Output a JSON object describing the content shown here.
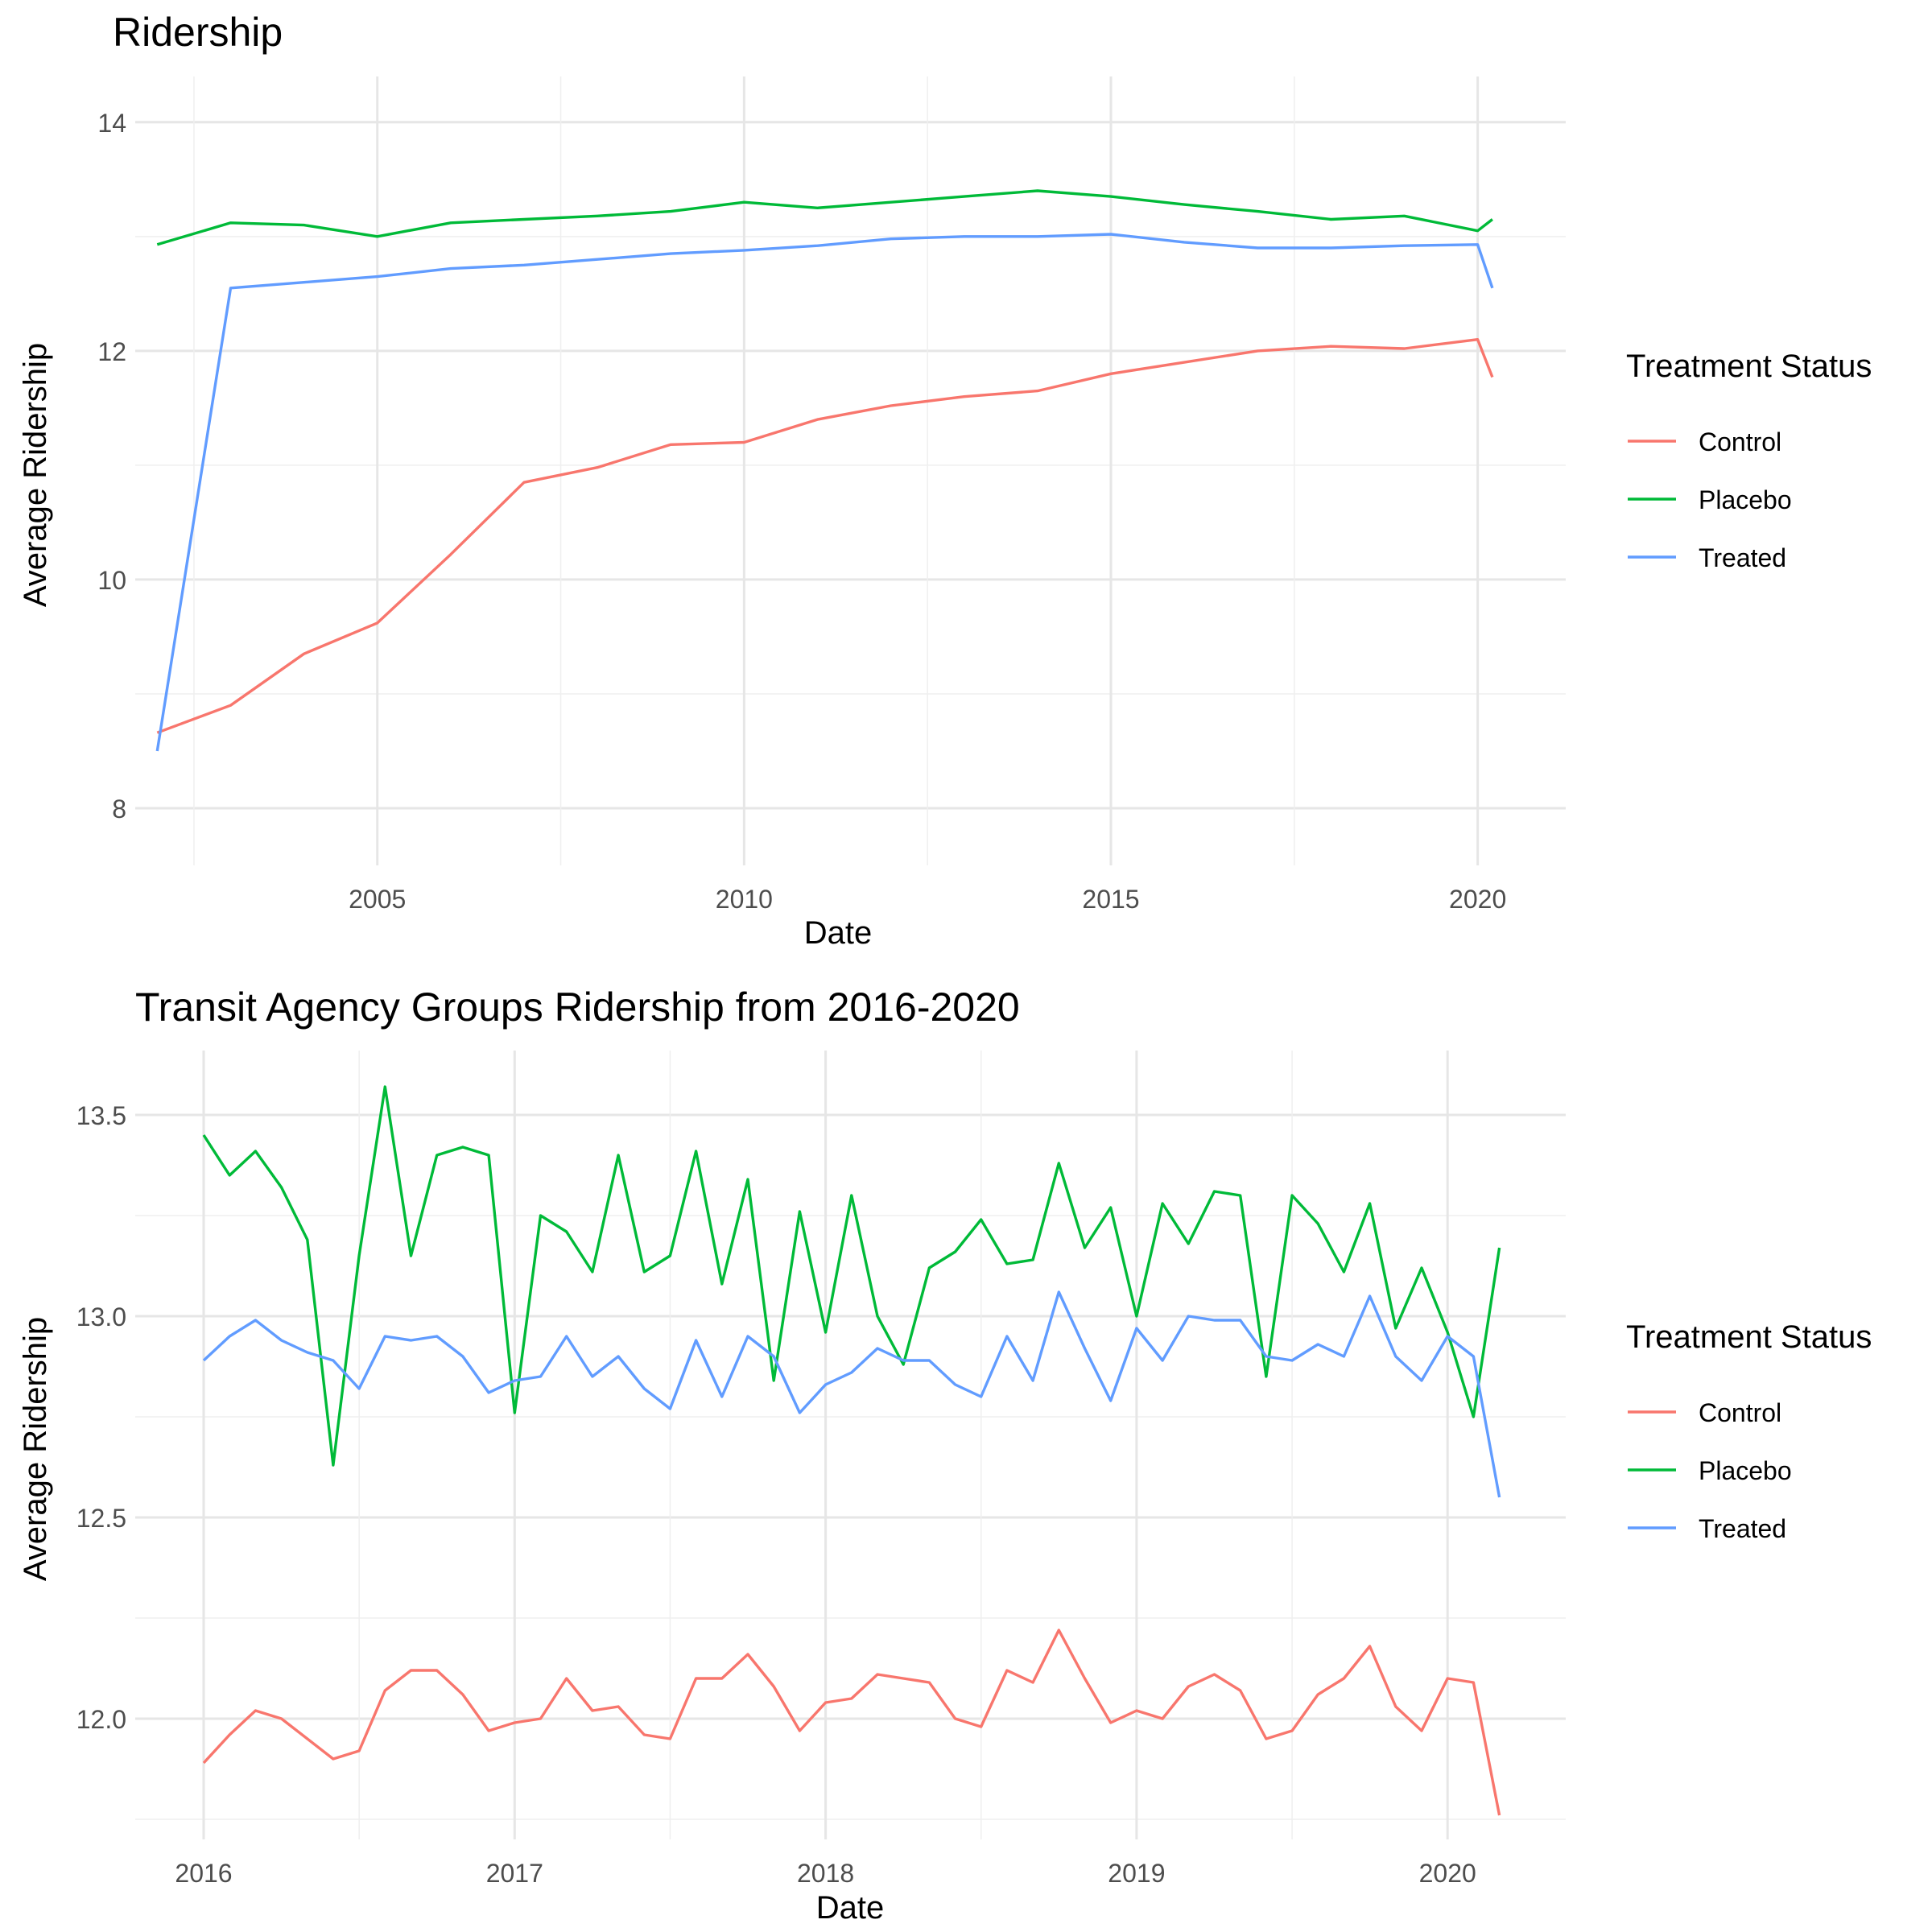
{
  "chart_data": [
    {
      "type": "line",
      "title": "Ridership",
      "xlabel": "Date",
      "ylabel": "Average Ridership",
      "x_ticks": [
        "2005",
        "2010",
        "2015",
        "2020"
      ],
      "y_ticks": [
        "8",
        "10",
        "12",
        "14"
      ],
      "xlim": [
        2001.7,
        2021.2
      ],
      "ylim": [
        7.5,
        14.4
      ],
      "grid": true,
      "legend": {
        "title": "Treatment Status",
        "position": "right",
        "entries": [
          "Control",
          "Placebo",
          "Treated"
        ]
      },
      "x": [
        2002.0,
        2003.0,
        2004.0,
        2005.0,
        2006.0,
        2007.0,
        2008.0,
        2009.0,
        2010.0,
        2011.0,
        2012.0,
        2013.0,
        2014.0,
        2015.0,
        2016.0,
        2017.0,
        2018.0,
        2019.0,
        2020.0,
        2020.2
      ],
      "series": [
        {
          "name": "Control",
          "color": "#F8766D",
          "values": [
            8.66,
            8.9,
            9.35,
            9.62,
            10.22,
            10.85,
            10.98,
            11.18,
            11.2,
            11.4,
            11.52,
            11.6,
            11.65,
            11.8,
            11.9,
            12.0,
            12.04,
            12.02,
            12.1,
            11.77
          ]
        },
        {
          "name": "Placebo",
          "color": "#00BA38",
          "values": [
            12.93,
            13.12,
            13.1,
            13.0,
            13.12,
            13.15,
            13.18,
            13.22,
            13.3,
            13.25,
            13.3,
            13.35,
            13.4,
            13.35,
            13.28,
            13.22,
            13.15,
            13.18,
            13.05,
            13.15
          ]
        },
        {
          "name": "Treated",
          "color": "#619CFF",
          "values": [
            8.5,
            12.55,
            12.6,
            12.65,
            12.72,
            12.75,
            12.8,
            12.85,
            12.88,
            12.92,
            12.98,
            13.0,
            13.0,
            13.02,
            12.95,
            12.9,
            12.9,
            12.92,
            12.93,
            12.55
          ]
        }
      ]
    },
    {
      "type": "line",
      "title": "Transit Agency Groups Ridership from 2016-2020",
      "xlabel": "Date",
      "ylabel": "Average Ridership",
      "x_ticks": [
        "2016",
        "2017",
        "2018",
        "2019",
        "2020"
      ],
      "y_ticks": [
        "12.0",
        "12.5",
        "13.0",
        "13.5"
      ],
      "xlim": [
        2015.78,
        2020.38
      ],
      "ylim": [
        11.7,
        13.66
      ],
      "grid": true,
      "legend": {
        "title": "Treatment Status",
        "position": "right",
        "entries": [
          "Control",
          "Placebo",
          "Treated"
        ]
      },
      "x": [
        "2016-01",
        "2016-02",
        "2016-03",
        "2016-04",
        "2016-05",
        "2016-06",
        "2016-07",
        "2016-08",
        "2016-09",
        "2016-10",
        "2016-11",
        "2016-12",
        "2017-01",
        "2017-02",
        "2017-03",
        "2017-04",
        "2017-05",
        "2017-06",
        "2017-07",
        "2017-08",
        "2017-09",
        "2017-10",
        "2017-11",
        "2017-12",
        "2018-01",
        "2018-02",
        "2018-03",
        "2018-04",
        "2018-05",
        "2018-06",
        "2018-07",
        "2018-08",
        "2018-09",
        "2018-10",
        "2018-11",
        "2018-12",
        "2019-01",
        "2019-02",
        "2019-03",
        "2019-04",
        "2019-05",
        "2019-06",
        "2019-07",
        "2019-08",
        "2019-09",
        "2019-10",
        "2019-11",
        "2019-12",
        "2020-01",
        "2020-02",
        "2020-03"
      ],
      "series": [
        {
          "name": "Control",
          "color": "#F8766D",
          "values": [
            11.89,
            11.96,
            12.02,
            12.0,
            11.95,
            11.9,
            11.92,
            12.07,
            12.12,
            12.12,
            12.06,
            11.97,
            11.99,
            12.0,
            12.1,
            12.02,
            12.03,
            11.96,
            11.95,
            12.1,
            12.1,
            12.16,
            12.08,
            11.97,
            12.04,
            12.05,
            12.11,
            12.1,
            12.09,
            12.0,
            11.98,
            12.12,
            12.09,
            12.22,
            12.1,
            11.99,
            12.02,
            12.0,
            12.08,
            12.11,
            12.07,
            11.95,
            11.97,
            12.06,
            12.1,
            12.18,
            12.03,
            11.97,
            12.1,
            12.09,
            11.76
          ]
        },
        {
          "name": "Placebo",
          "color": "#00BA38",
          "values": [
            13.45,
            13.35,
            13.41,
            13.32,
            13.19,
            12.63,
            13.15,
            13.57,
            13.15,
            13.4,
            13.42,
            13.4,
            12.76,
            13.25,
            13.21,
            13.11,
            13.4,
            13.11,
            13.15,
            13.41,
            13.08,
            13.34,
            12.84,
            13.26,
            12.96,
            13.3,
            13.0,
            12.88,
            13.12,
            13.16,
            13.24,
            13.13,
            13.14,
            13.38,
            13.17,
            13.27,
            13.0,
            13.28,
            13.18,
            13.31,
            13.3,
            12.85,
            13.3,
            13.23,
            13.11,
            13.28,
            12.97,
            13.12,
            12.96,
            12.75,
            13.17
          ]
        },
        {
          "name": "Treated",
          "color": "#619CFF",
          "values": [
            12.89,
            12.95,
            12.99,
            12.94,
            12.91,
            12.89,
            12.82,
            12.95,
            12.94,
            12.95,
            12.9,
            12.81,
            12.84,
            12.85,
            12.95,
            12.85,
            12.9,
            12.82,
            12.77,
            12.94,
            12.8,
            12.95,
            12.9,
            12.76,
            12.83,
            12.86,
            12.92,
            12.89,
            12.89,
            12.83,
            12.8,
            12.95,
            12.84,
            13.06,
            12.92,
            12.79,
            12.97,
            12.89,
            13.0,
            12.99,
            12.99,
            12.9,
            12.89,
            12.93,
            12.9,
            13.05,
            12.9,
            12.84,
            12.95,
            12.9,
            12.55
          ]
        }
      ]
    }
  ]
}
